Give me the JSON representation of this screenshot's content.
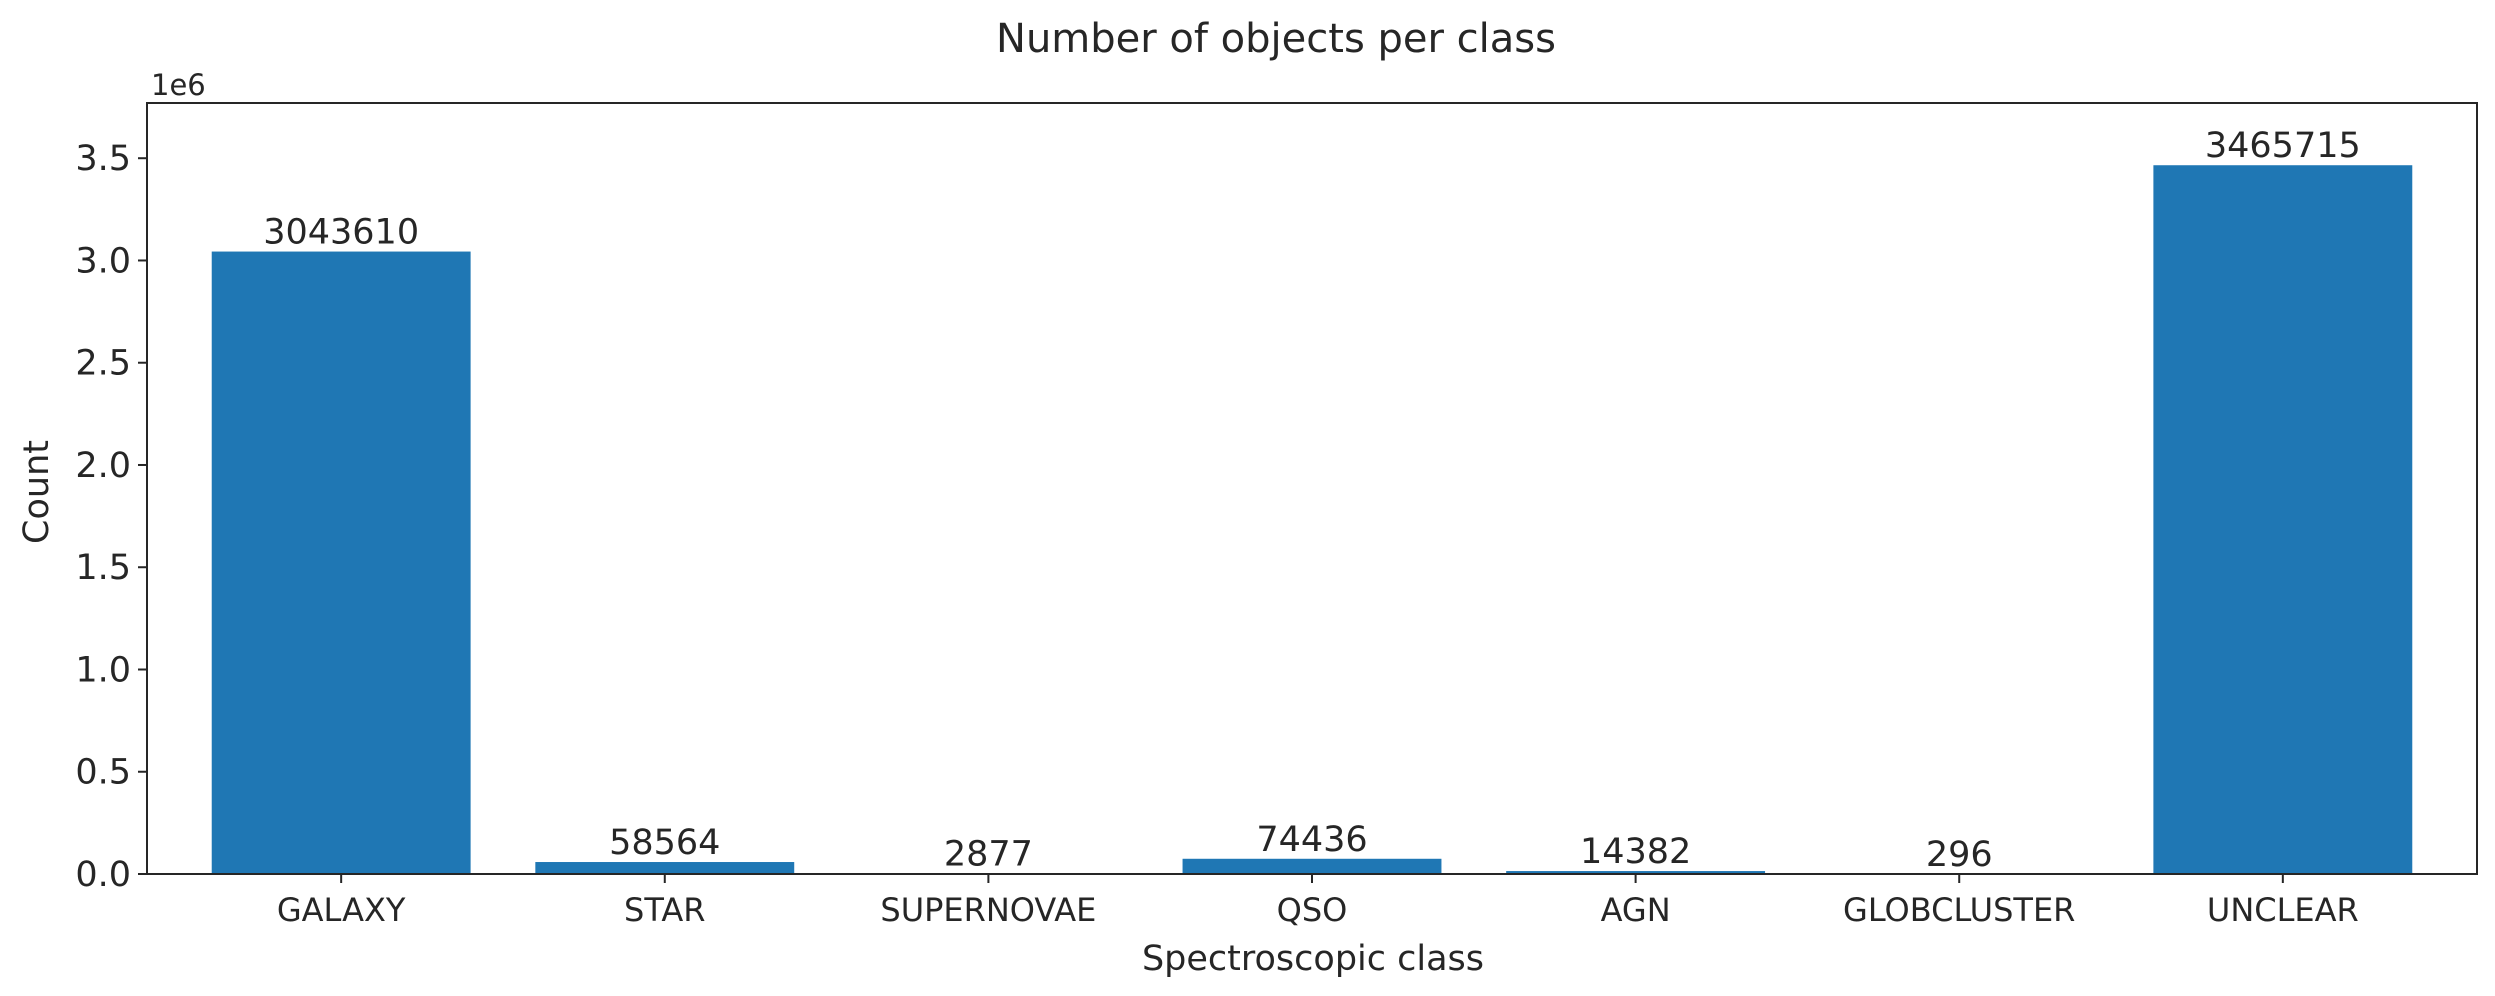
{
  "chart_data": {
    "type": "bar",
    "title": "Number of objects per class",
    "xlabel": "Spectroscopic class",
    "ylabel": "Count",
    "y_offset_label": "1e6",
    "categories": [
      "GALAXY",
      "STAR",
      "SUPERNOVAE",
      "QSO",
      "AGN",
      "GLOBCLUSTER",
      "UNCLEAR"
    ],
    "values": [
      3043610,
      58564,
      2877,
      74436,
      14382,
      296,
      3465715
    ],
    "data_labels": [
      "3043610",
      "58564",
      "2877",
      "74436",
      "14382",
      "296",
      "3465715"
    ],
    "ylim": [
      0,
      3770000
    ],
    "y_ticks": [
      0,
      500000,
      1000000,
      1500000,
      2000000,
      2500000,
      3000000,
      3500000
    ],
    "y_tick_labels": [
      "0.0",
      "0.5",
      "1.0",
      "1.5",
      "2.0",
      "2.5",
      "3.0",
      "3.5"
    ],
    "bar_color": "#1f77b4",
    "grid": false,
    "legend": "none"
  }
}
